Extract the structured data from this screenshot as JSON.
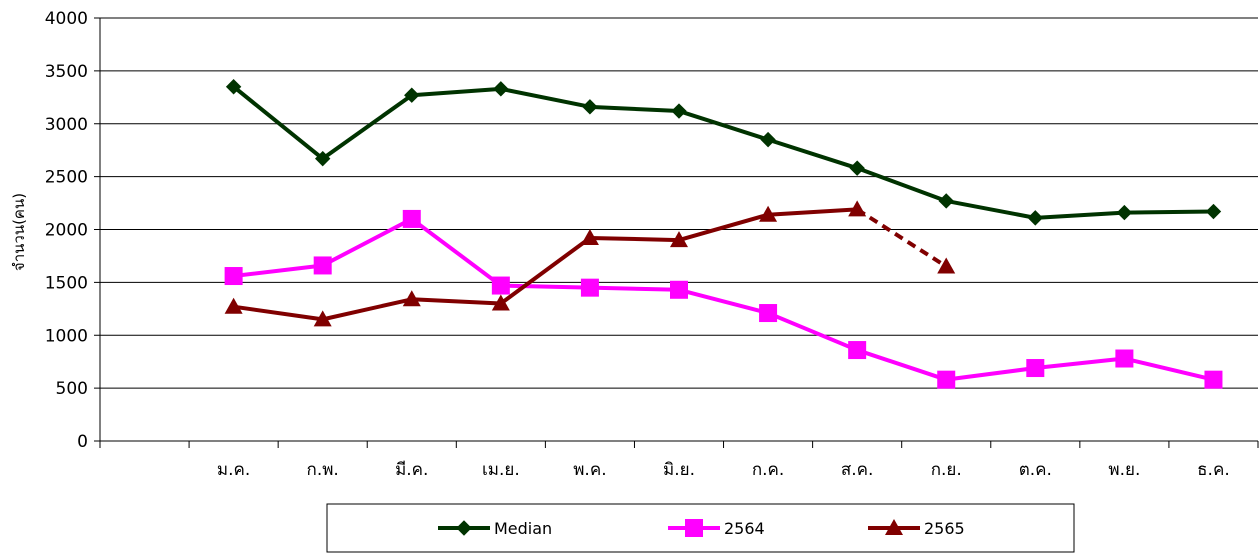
{
  "chart_data": {
    "type": "line",
    "title": "",
    "xlabel": "",
    "ylabel": "จำนวน(คน)",
    "ylim": [
      0,
      4000
    ],
    "yticks": [
      0,
      500,
      1000,
      1500,
      2000,
      2500,
      3000,
      3500,
      4000
    ],
    "categories": [
      "ม.ค.",
      "ก.พ.",
      "มี.ค.",
      "เม.ย.",
      "พ.ค.",
      "มิ.ย.",
      "ก.ค.",
      "ส.ค.",
      "ก.ย.",
      "ต.ค.",
      "พ.ย.",
      "ธ.ค."
    ],
    "grid": true,
    "legend_position": "bottom",
    "series": [
      {
        "name": "Median",
        "color": "#003300",
        "marker": "diamond",
        "values": [
          3350,
          2670,
          3270,
          3330,
          3160,
          3120,
          2850,
          2580,
          2270,
          2110,
          2160,
          2170
        ]
      },
      {
        "name": "2564",
        "color": "#ff00ff",
        "marker": "square",
        "values": [
          1560,
          1660,
          2100,
          1470,
          1450,
          1430,
          1210,
          860,
          580,
          690,
          780,
          580
        ]
      },
      {
        "name": "2565",
        "color": "#800000",
        "marker": "triangle",
        "values": [
          1270,
          1150,
          1340,
          1300,
          1920,
          1900,
          2140,
          2190,
          1650,
          null,
          null,
          null
        ],
        "dashed_from_index": 7
      }
    ]
  }
}
